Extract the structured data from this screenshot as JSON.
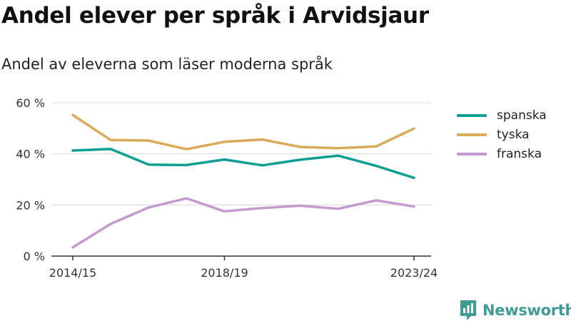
{
  "title": "Andel elever per språk i Arvidsjaur",
  "subtitle": "Andel av eleverna som läser moderna språk",
  "logo_text": "Newsworthy",
  "chart_data": {
    "type": "line",
    "x": [
      "2014/15",
      "2015/16",
      "2016/17",
      "2017/18",
      "2018/19",
      "2019/20",
      "2020/21",
      "2021/22",
      "2022/23",
      "2023/24"
    ],
    "x_tick_labels": [
      "2014/15",
      "2018/19",
      "2023/24"
    ],
    "y_ticks": [
      0,
      20,
      40,
      60
    ],
    "y_tick_labels": [
      "0 %",
      "20 %",
      "40 %",
      "60 %"
    ],
    "ylim": [
      0,
      60
    ],
    "grid": true,
    "legend_position": "right",
    "series": [
      {
        "name": "spanska",
        "color": "#0f9e93",
        "values": [
          41.3,
          41.9,
          35.8,
          35.6,
          37.8,
          35.5,
          37.7,
          39.3,
          35.3,
          30.6
        ]
      },
      {
        "name": "tyska",
        "color": "#dbaa58",
        "values": [
          55.2,
          45.4,
          45.2,
          41.8,
          44.7,
          45.6,
          42.7,
          42.2,
          42.9,
          49.9
        ]
      },
      {
        "name": "franska",
        "color": "#c59ad0",
        "values": [
          3.4,
          12.6,
          19.0,
          22.6,
          17.5,
          18.8,
          19.7,
          18.5,
          21.8,
          19.4
        ]
      }
    ]
  }
}
